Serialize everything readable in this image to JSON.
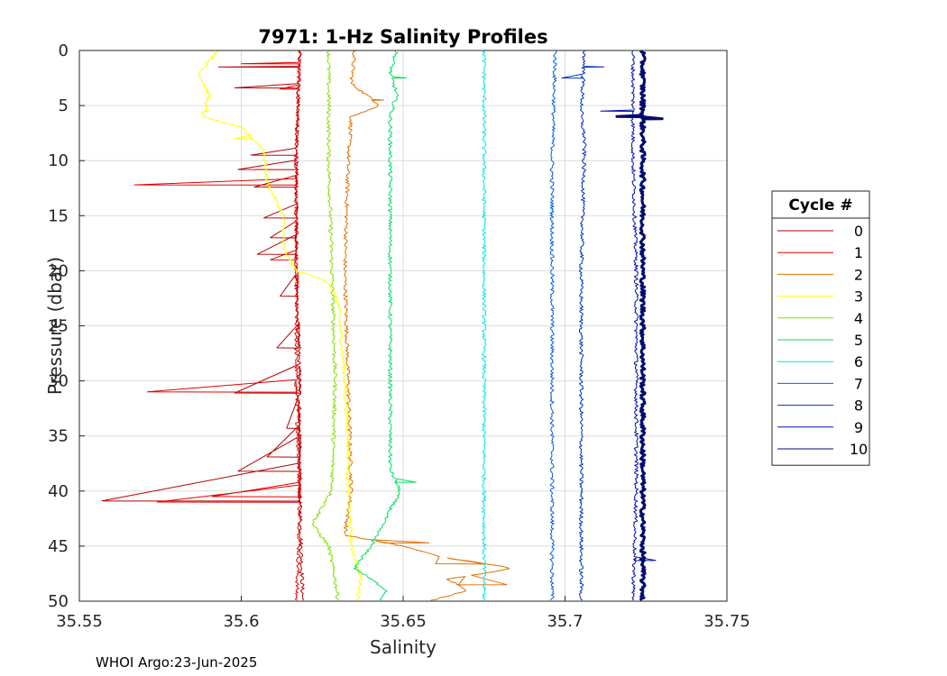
{
  "chart_data": {
    "type": "line",
    "title": "7971: 1-Hz Salinity Profiles",
    "xlabel": "Salinity",
    "ylabel": "Pressure (dbar)",
    "xlim": [
      35.55,
      35.75
    ],
    "ylim": [
      0,
      50
    ],
    "y_reversed": true,
    "grid": true,
    "x_ticks": [
      "35.55",
      "35.6",
      "35.65",
      "35.7",
      "35.75"
    ],
    "y_ticks": [
      "0",
      "5",
      "10",
      "15",
      "20",
      "25",
      "30",
      "35",
      "40",
      "45",
      "50"
    ],
    "legend": {
      "title": "Cycle #",
      "position": "right-outside"
    },
    "series": [
      {
        "name": "0",
        "color": "#b40000",
        "width": 1,
        "base": [
          [
            0,
            35.618
          ],
          [
            10,
            35.617
          ],
          [
            20,
            35.617
          ],
          [
            30,
            35.618
          ],
          [
            40,
            35.618
          ],
          [
            50,
            35.619
          ]
        ],
        "spikes": [
          [
            1.5,
            35.593
          ],
          [
            3.4,
            35.598
          ],
          [
            9.5,
            35.603
          ],
          [
            10.8,
            35.599
          ],
          [
            12.4,
            35.604
          ],
          [
            15.2,
            35.607
          ],
          [
            17.0,
            35.609
          ],
          [
            18.5,
            35.605
          ],
          [
            22.3,
            35.612
          ],
          [
            27.0,
            35.611
          ],
          [
            31.1,
            35.598
          ],
          [
            34.3,
            35.614
          ],
          [
            36.9,
            35.608
          ],
          [
            38.2,
            35.599
          ],
          [
            40.9,
            35.557
          ]
        ]
      },
      {
        "name": "1",
        "color": "#e60000",
        "width": 1,
        "base": [
          [
            0,
            35.618
          ],
          [
            10,
            35.617
          ],
          [
            20,
            35.617
          ],
          [
            30,
            35.617
          ],
          [
            40,
            35.618
          ],
          [
            44,
            35.618
          ],
          [
            50,
            35.617
          ]
        ],
        "spikes": [
          [
            1.2,
            35.6
          ],
          [
            3.5,
            35.612
          ],
          [
            12.2,
            35.567
          ],
          [
            19.0,
            35.609
          ],
          [
            31.0,
            35.571
          ],
          [
            40.5,
            35.591
          ],
          [
            41.0,
            35.574
          ]
        ]
      },
      {
        "name": "2",
        "color": "#e07000",
        "width": 1,
        "base": [
          [
            0,
            35.635
          ],
          [
            3,
            35.634
          ],
          [
            5,
            35.643
          ],
          [
            6,
            35.634
          ],
          [
            10,
            35.633
          ],
          [
            20,
            35.632
          ],
          [
            30,
            35.633
          ],
          [
            40,
            35.634
          ],
          [
            44,
            35.632
          ],
          [
            45,
            35.65
          ],
          [
            46,
            35.662
          ],
          [
            47,
            35.684
          ],
          [
            48,
            35.664
          ],
          [
            49,
            35.67
          ],
          [
            50,
            35.658
          ]
        ],
        "spikes": [
          [
            4.5,
            35.644
          ],
          [
            44.7,
            35.658
          ],
          [
            46.6,
            35.66
          ],
          [
            48.5,
            35.682
          ]
        ]
      },
      {
        "name": "3",
        "color": "#ffff00",
        "width": 1,
        "base": [
          [
            0,
            35.593
          ],
          [
            2,
            35.587
          ],
          [
            4,
            35.59
          ],
          [
            6,
            35.588
          ],
          [
            7,
            35.6
          ],
          [
            9,
            35.607
          ],
          [
            12,
            35.608
          ],
          [
            15,
            35.613
          ],
          [
            18,
            35.613
          ],
          [
            20,
            35.617
          ],
          [
            21,
            35.627
          ],
          [
            23,
            35.63
          ],
          [
            30,
            35.632
          ],
          [
            35,
            35.633
          ],
          [
            40,
            35.633
          ],
          [
            45,
            35.634
          ],
          [
            48,
            35.637
          ],
          [
            50,
            35.636
          ]
        ],
        "spikes": [
          [
            5.5,
            35.59
          ],
          [
            8.0,
            35.598
          ]
        ]
      },
      {
        "name": "4",
        "color": "#80e000",
        "width": 1,
        "base": [
          [
            0,
            35.627
          ],
          [
            10,
            35.627
          ],
          [
            20,
            35.628
          ],
          [
            30,
            35.629
          ],
          [
            40,
            35.628
          ],
          [
            43,
            35.622
          ],
          [
            45,
            35.627
          ],
          [
            48,
            35.629
          ],
          [
            50,
            35.63
          ]
        ],
        "spikes": []
      },
      {
        "name": "5",
        "color": "#00e060",
        "width": 1,
        "base": [
          [
            0,
            35.648
          ],
          [
            2,
            35.646
          ],
          [
            4,
            35.648
          ],
          [
            6,
            35.646
          ],
          [
            10,
            35.646
          ],
          [
            20,
            35.646
          ],
          [
            30,
            35.646
          ],
          [
            38,
            35.646
          ],
          [
            40,
            35.649
          ],
          [
            45,
            35.64
          ],
          [
            47,
            35.635
          ],
          [
            49,
            35.645
          ],
          [
            50,
            35.643
          ]
        ],
        "spikes": [
          [
            2.5,
            35.651
          ],
          [
            39.2,
            35.654
          ]
        ]
      },
      {
        "name": "6",
        "color": "#00e6e6",
        "width": 1,
        "base": [
          [
            0,
            35.675
          ],
          [
            10,
            35.675
          ],
          [
            20,
            35.675
          ],
          [
            30,
            35.675
          ],
          [
            40,
            35.675
          ],
          [
            50,
            35.675
          ]
        ],
        "spikes": []
      },
      {
        "name": "7",
        "color": "#0060e0",
        "width": 1,
        "base": [
          [
            0,
            35.697
          ],
          [
            10,
            35.696
          ],
          [
            20,
            35.696
          ],
          [
            30,
            35.696
          ],
          [
            40,
            35.696
          ],
          [
            50,
            35.696
          ]
        ],
        "spikes": []
      },
      {
        "name": "8",
        "color": "#0030c0",
        "width": 1,
        "base": [
          [
            0,
            35.706
          ],
          [
            6,
            35.705
          ],
          [
            8,
            35.706
          ],
          [
            20,
            35.705
          ],
          [
            30,
            35.705
          ],
          [
            40,
            35.705
          ],
          [
            50,
            35.705
          ]
        ],
        "spikes": [
          [
            1.5,
            35.712
          ],
          [
            2.5,
            35.699
          ]
        ]
      },
      {
        "name": "9",
        "color": "#0010b0",
        "width": 1,
        "base": [
          [
            0,
            35.721
          ],
          [
            10,
            35.721
          ],
          [
            20,
            35.722
          ],
          [
            30,
            35.722
          ],
          [
            40,
            35.722
          ],
          [
            50,
            35.721
          ]
        ],
        "spikes": [
          [
            5.5,
            35.711
          ],
          [
            46.3,
            35.728
          ]
        ]
      },
      {
        "name": "10",
        "color": "#000a70",
        "width": 3,
        "base": [
          [
            0,
            35.724
          ],
          [
            10,
            35.724
          ],
          [
            20,
            35.724
          ],
          [
            30,
            35.724
          ],
          [
            40,
            35.724
          ],
          [
            50,
            35.724
          ]
        ],
        "spikes": [
          [
            6.0,
            35.716
          ],
          [
            6.2,
            35.73
          ]
        ]
      }
    ]
  },
  "footer": "WHOI Argo:23-Jun-2025"
}
